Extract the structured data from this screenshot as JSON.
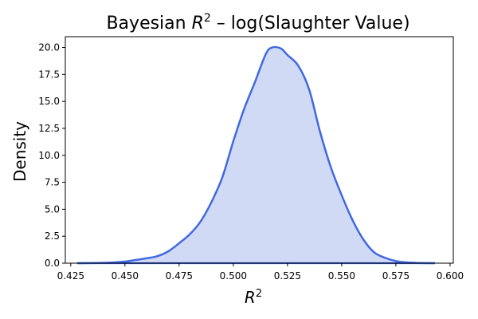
{
  "chart_data": {
    "type": "area",
    "title": {
      "prefix": "Bayesian ",
      "symbol": "R",
      "sup": "2",
      "suffix": " – log(Slaughter Value)"
    },
    "xlabel": {
      "symbol": "R",
      "sup": "2"
    },
    "ylabel": "Density",
    "xlim": [
      0.4225,
      0.6015
    ],
    "ylim": [
      0,
      21.0
    ],
    "x_ticks": [
      0.425,
      0.45,
      0.475,
      0.5,
      0.525,
      0.55,
      0.575,
      0.6
    ],
    "x_tick_labels": [
      "0.425",
      "0.450",
      "0.475",
      "0.500",
      "0.525",
      "0.550",
      "0.575",
      "0.600"
    ],
    "y_ticks": [
      0,
      2.5,
      5,
      7.5,
      10,
      12.5,
      15,
      17.5,
      20
    ],
    "y_tick_labels": [
      "0.0",
      "2.5",
      "5.0",
      "7.5",
      "10.0",
      "12.5",
      "15.0",
      "17.5",
      "20.0"
    ],
    "grid": false,
    "colors": {
      "line": "#4169E1",
      "fill": "#d0daf5"
    },
    "series": [
      {
        "x": [
          0.428,
          0.44,
          0.45,
          0.455,
          0.46,
          0.465,
          0.47,
          0.475,
          0.48,
          0.485,
          0.49,
          0.495,
          0.5,
          0.505,
          0.51,
          0.515,
          0.518,
          0.522,
          0.525,
          0.53,
          0.535,
          0.54,
          0.545,
          0.55,
          0.555,
          0.56,
          0.565,
          0.57,
          0.575,
          0.58,
          0.585,
          0.593
        ],
        "y": [
          0.0,
          0.03,
          0.15,
          0.3,
          0.45,
          0.65,
          1.1,
          1.85,
          2.7,
          3.9,
          5.7,
          8.0,
          11.3,
          14.3,
          16.8,
          19.4,
          20.0,
          19.9,
          19.3,
          18.3,
          16.1,
          12.2,
          8.9,
          6.3,
          4.0,
          2.2,
          1.0,
          0.5,
          0.2,
          0.07,
          0.02,
          0.0
        ]
      }
    ]
  }
}
